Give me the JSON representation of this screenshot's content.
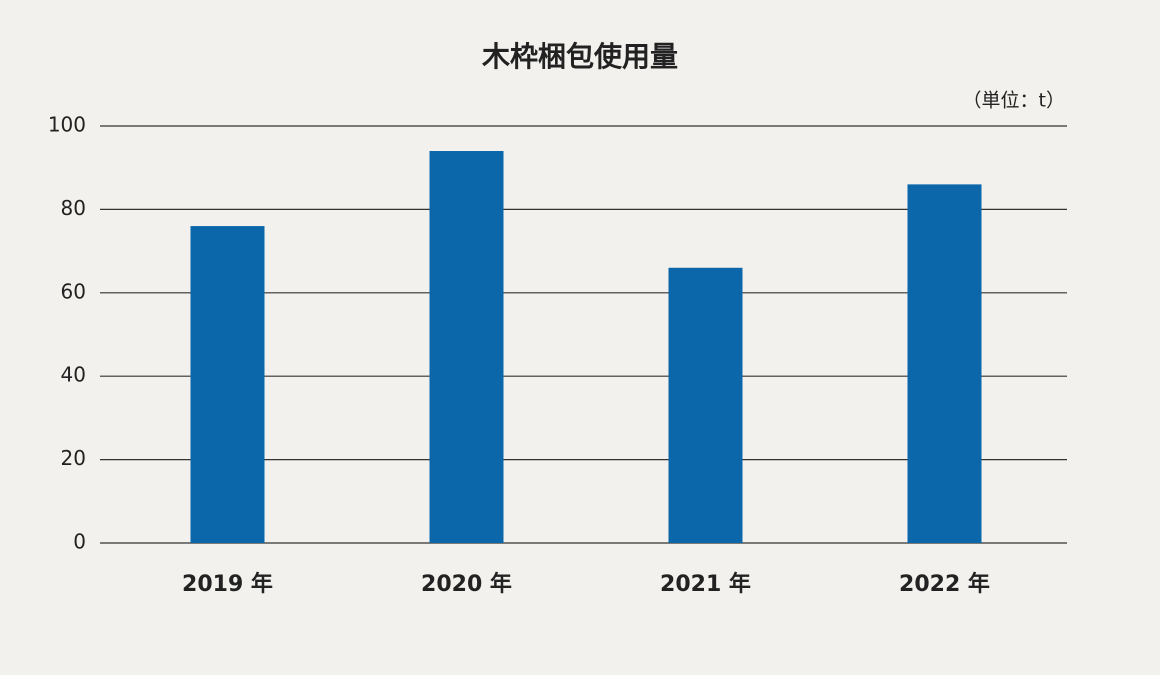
{
  "chart_data": {
    "type": "bar",
    "title": "木枠梱包使用量",
    "unit_label": "（単位：t）",
    "categories": [
      "2019 年",
      "2020 年",
      "2021 年",
      "2022 年"
    ],
    "values": [
      76,
      94,
      66,
      86
    ],
    "color": "#0b66aa",
    "ylim": [
      0,
      100
    ],
    "yticks": [
      0,
      20,
      40,
      60,
      80,
      100
    ],
    "grid": true
  }
}
